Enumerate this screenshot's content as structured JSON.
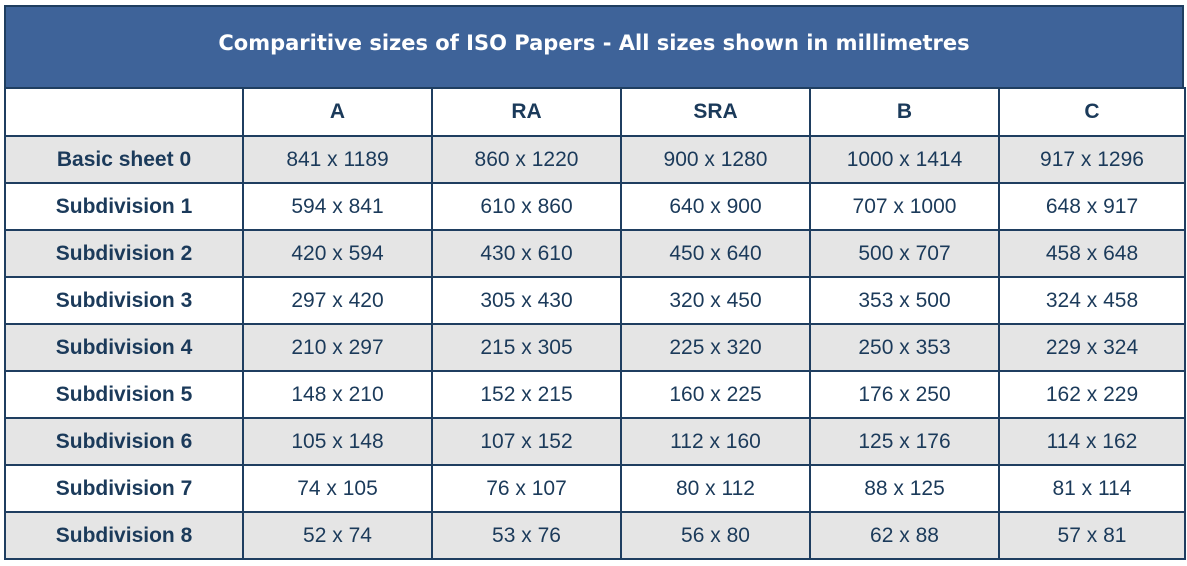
{
  "header": {
    "title": "Comparitive sizes of ISO Papers - All sizes shown in millimetres"
  },
  "table": {
    "columns": [
      "A",
      "RA",
      "SRA",
      "B",
      "C"
    ],
    "rows": [
      [
        "Basic sheet 0",
        "841 x 1189",
        "860 x 1220",
        "900 x 1280",
        "1000 x 1414",
        "917 x 1296"
      ],
      [
        "Subdivision 1",
        "594 x 841",
        "610 x 860",
        "640 x 900",
        "707 x 1000",
        "648 x 917"
      ],
      [
        "Subdivision 2",
        "420 x 594",
        "430 x 610",
        "450 x 640",
        "500 x 707",
        "458 x 648"
      ],
      [
        "Subdivision 3",
        "297 x 420",
        "305 x 430",
        "320 x 450",
        "353 x 500",
        "324 x 458"
      ],
      [
        "Subdivision 4",
        "210 x 297",
        "215 x 305",
        "225 x 320",
        "250 x 353",
        "229 x 324"
      ],
      [
        "Subdivision 5",
        "148 x 210",
        "152 x 215",
        "160 x 225",
        "176 x 250",
        "162 x 229"
      ],
      [
        "Subdivision 6",
        "105 x 148",
        "107 x 152",
        "112 x 160",
        "125 x 176",
        "114 x 162"
      ],
      [
        "Subdivision 7",
        "74 x 105",
        "76 x 107",
        "80 x 112",
        "88 x 125",
        "81 x 114"
      ],
      [
        "Subdivision 8",
        "52 x 74",
        "53 x 76",
        "56 x 80",
        "62 x 88",
        "57 x 81"
      ]
    ]
  }
}
